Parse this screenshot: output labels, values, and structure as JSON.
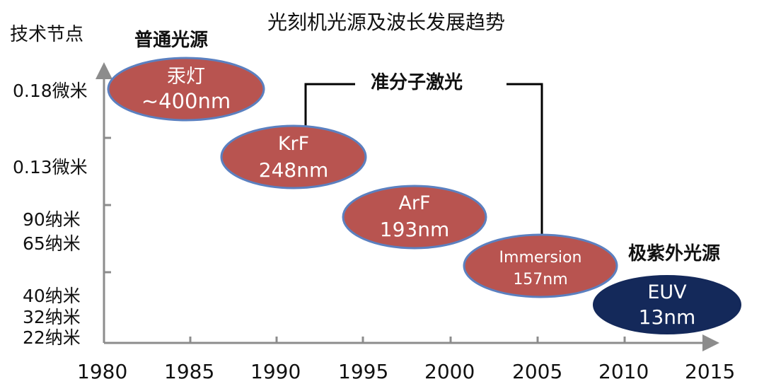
{
  "title": "光刻机光源及波长发展趋势",
  "y_axis_title": "技术节点",
  "y_labels": [
    "0.18微米",
    "0.13微米",
    "90纳米",
    "65纳米",
    "40纳米",
    "32纳米",
    "22纳米"
  ],
  "x_labels": [
    "1980",
    "1985",
    "1990",
    "1995",
    "2000",
    "2005",
    "2010",
    "2015"
  ],
  "groups": {
    "normal": "普通光源",
    "excimer": "准分子激光",
    "euv": "极紫外光源"
  },
  "sources": [
    {
      "name": "汞灯",
      "wavelength": "~400nm",
      "year": 1985,
      "node": "0.18微米",
      "color": "#b85450"
    },
    {
      "name": "KrF",
      "wavelength": "248nm",
      "year": 1991,
      "node": "0.13微米",
      "color": "#b85450"
    },
    {
      "name": "ArF",
      "wavelength": "193nm",
      "year": 1998,
      "node": "90纳米",
      "color": "#b85450"
    },
    {
      "name": "Immersion",
      "wavelength": "157nm",
      "year": 2005,
      "node": "65纳米",
      "color": "#b85450"
    },
    {
      "name": "EUV",
      "wavelength": "13nm",
      "year": 2012,
      "node": "32纳米",
      "color": "#14295a"
    }
  ],
  "colors": {
    "ellipse_fill": "#b85450",
    "ellipse_border": "#5b80c0",
    "euv_fill": "#14295a",
    "axis": "#8c8c8c",
    "bracket": "#000000"
  }
}
